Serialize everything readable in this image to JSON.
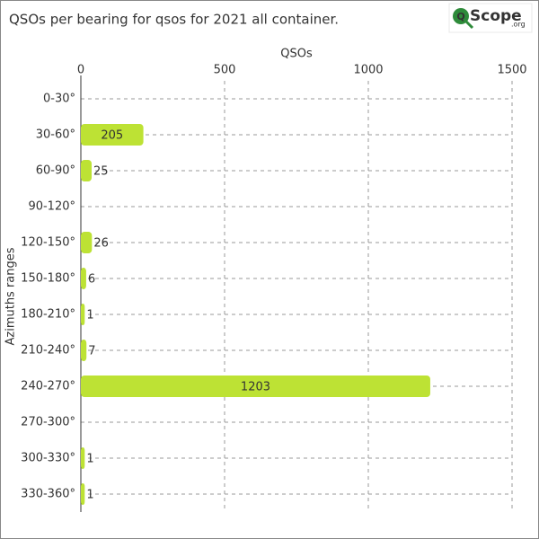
{
  "chart_data": {
    "type": "bar",
    "orientation": "horizontal",
    "title": "QSOs per bearing for qsos for 2021 all container.",
    "logo": {
      "mark": "Q",
      "name": "Scope",
      "suffix": ".org"
    },
    "x_label": "QSOs",
    "y_label": "Azimuths ranges",
    "categories": [
      "0-30°",
      "30-60°",
      "60-90°",
      "90-120°",
      "120-150°",
      "150-180°",
      "180-210°",
      "210-240°",
      "240-270°",
      "270-300°",
      "300-330°",
      "330-360°"
    ],
    "values": [
      0,
      205,
      25,
      0,
      26,
      6,
      1,
      7,
      1203,
      0,
      1,
      1
    ],
    "color": "#bde234",
    "xlim": [
      0,
      1500
    ],
    "xticks": [
      0,
      500,
      1000,
      1500
    ],
    "grid": true
  }
}
